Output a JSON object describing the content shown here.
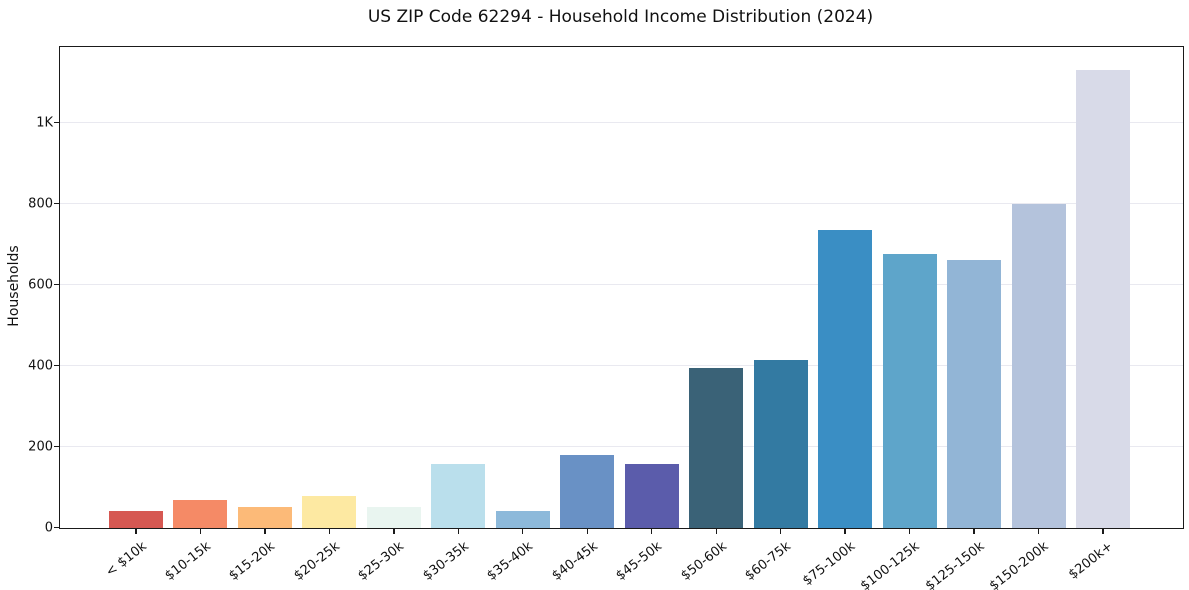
{
  "figure": {
    "title": "US ZIP Code 62294 - Household Income Distribution (2024)"
  },
  "chart_data": {
    "type": "bar",
    "title": "US ZIP Code 62294 - Household Income Distribution (2024)",
    "xlabel": "",
    "ylabel": "Households",
    "categories": [
      "< $10k",
      "$10-15k",
      "$15-20k",
      "$20-25k",
      "$25-30k",
      "$30-35k",
      "$35-40k",
      "$40-45k",
      "$45-50k",
      "$50-60k",
      "$60-75k",
      "$75-100k",
      "$100-125k",
      "$125-150k",
      "$150-200k",
      "$200k+"
    ],
    "values": [
      42,
      69,
      52,
      80,
      52,
      157,
      42,
      181,
      158,
      396,
      416,
      737,
      678,
      661,
      800,
      1130
    ],
    "bar_colors": [
      "#d65852",
      "#f58a66",
      "#fcba78",
      "#fde9a2",
      "#e9f5f0",
      "#badfec",
      "#8db9da",
      "#6991c5",
      "#5b5cab",
      "#3a6277",
      "#337aa2",
      "#3a8ec4",
      "#5ea5ca",
      "#92b5d6",
      "#b4c3dc",
      "#d8dae8"
    ],
    "ylim": [
      0,
      1188
    ],
    "yticks": {
      "values": [
        0,
        200,
        400,
        600,
        800,
        1000
      ],
      "labels": [
        "0",
        "200",
        "400",
        "600",
        "800",
        "1K"
      ]
    },
    "grid": "horizontal-only",
    "legend": "none",
    "styles": {
      "background": "#ffffff",
      "grid_color": "#e9e9f0",
      "spine_color": "#1a1a1a",
      "text_color": "#111111"
    }
  }
}
